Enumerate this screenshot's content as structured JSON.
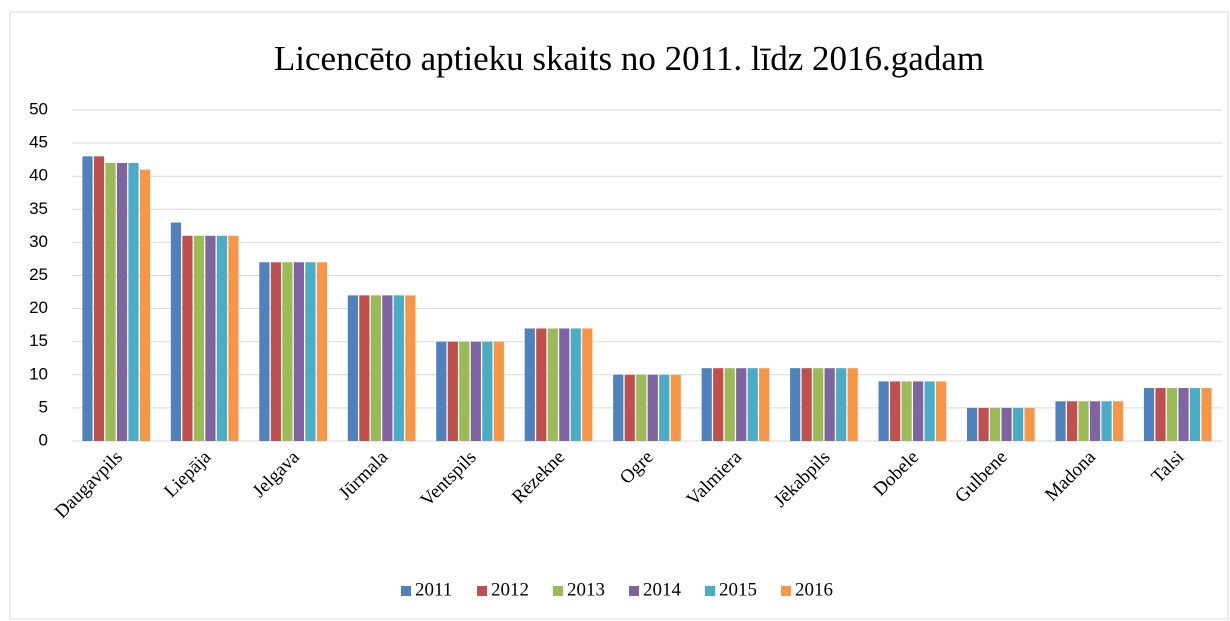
{
  "chart_data": {
    "type": "bar",
    "title": "Licencēto aptieku skaits no 2011. līdz 2016.gadam",
    "categories": [
      "Daugavpils",
      "Liepāja",
      "Jelgava",
      "Jūrmala",
      "Ventspils",
      "Rēzekne",
      "Ogre",
      "Valmiera",
      "Jēkabpils",
      "Dobele",
      "Gulbene",
      "Madona",
      "Talsi"
    ],
    "series": [
      {
        "name": "2011",
        "color": "#4f81bd",
        "values": [
          43,
          33,
          27,
          22,
          15,
          17,
          10,
          11,
          11,
          9,
          5,
          6,
          8
        ]
      },
      {
        "name": "2012",
        "color": "#c0504d",
        "values": [
          43,
          31,
          27,
          22,
          15,
          17,
          10,
          11,
          11,
          9,
          5,
          6,
          8
        ]
      },
      {
        "name": "2013",
        "color": "#9bbb59",
        "values": [
          42,
          31,
          27,
          22,
          15,
          17,
          10,
          11,
          11,
          9,
          5,
          6,
          8
        ]
      },
      {
        "name": "2014",
        "color": "#8064a2",
        "values": [
          42,
          31,
          27,
          22,
          15,
          17,
          10,
          11,
          11,
          9,
          5,
          6,
          8
        ]
      },
      {
        "name": "2015",
        "color": "#4bacc6",
        "values": [
          42,
          31,
          27,
          22,
          15,
          17,
          10,
          11,
          11,
          9,
          5,
          6,
          8
        ]
      },
      {
        "name": "2016",
        "color": "#f79646",
        "values": [
          41,
          31,
          27,
          22,
          15,
          17,
          10,
          11,
          11,
          9,
          5,
          6,
          8
        ]
      }
    ],
    "ylim": [
      0,
      50
    ],
    "yticks": [
      0,
      5,
      10,
      15,
      20,
      25,
      30,
      35,
      40,
      45,
      50
    ],
    "grid": true,
    "legend": "bottom"
  }
}
